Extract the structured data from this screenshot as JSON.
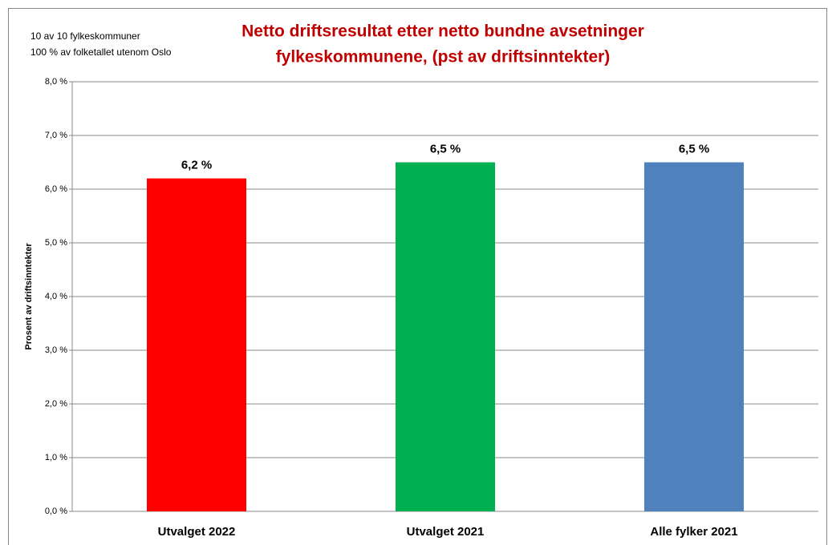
{
  "chart_data": {
    "type": "bar",
    "title": [
      "Netto driftsresultat etter netto bundne avsetninger",
      "fylkeskommunene, (pst av driftsinntekter)"
    ],
    "annotations": [
      "10 av 10 fylkeskommuner",
      "100 % av folketallet utenom Oslo"
    ],
    "y_label": "Prosent av driftsinntekter",
    "categories": [
      "Utvalget 2022",
      "Utvalget 2021",
      "Alle fylker 2021"
    ],
    "values": [
      6.2,
      6.5,
      6.5
    ],
    "value_labels": [
      "6,2 %",
      "6,5 %",
      "6,5 %"
    ],
    "colors": [
      "#ff0000",
      "#00b050",
      "#4f81bd"
    ],
    "ylim": [
      0,
      8
    ],
    "yticks": [
      {
        "value": 0,
        "label": "0,0 %"
      },
      {
        "value": 1,
        "label": "1,0 %"
      },
      {
        "value": 2,
        "label": "2,0 %"
      },
      {
        "value": 3,
        "label": "3,0 %"
      },
      {
        "value": 4,
        "label": "4,0 %"
      },
      {
        "value": 5,
        "label": "5,0 %"
      },
      {
        "value": 6,
        "label": "6,0 %"
      },
      {
        "value": 7,
        "label": "7,0 %"
      },
      {
        "value": 8,
        "label": "8,0 %"
      }
    ],
    "grid": true
  }
}
